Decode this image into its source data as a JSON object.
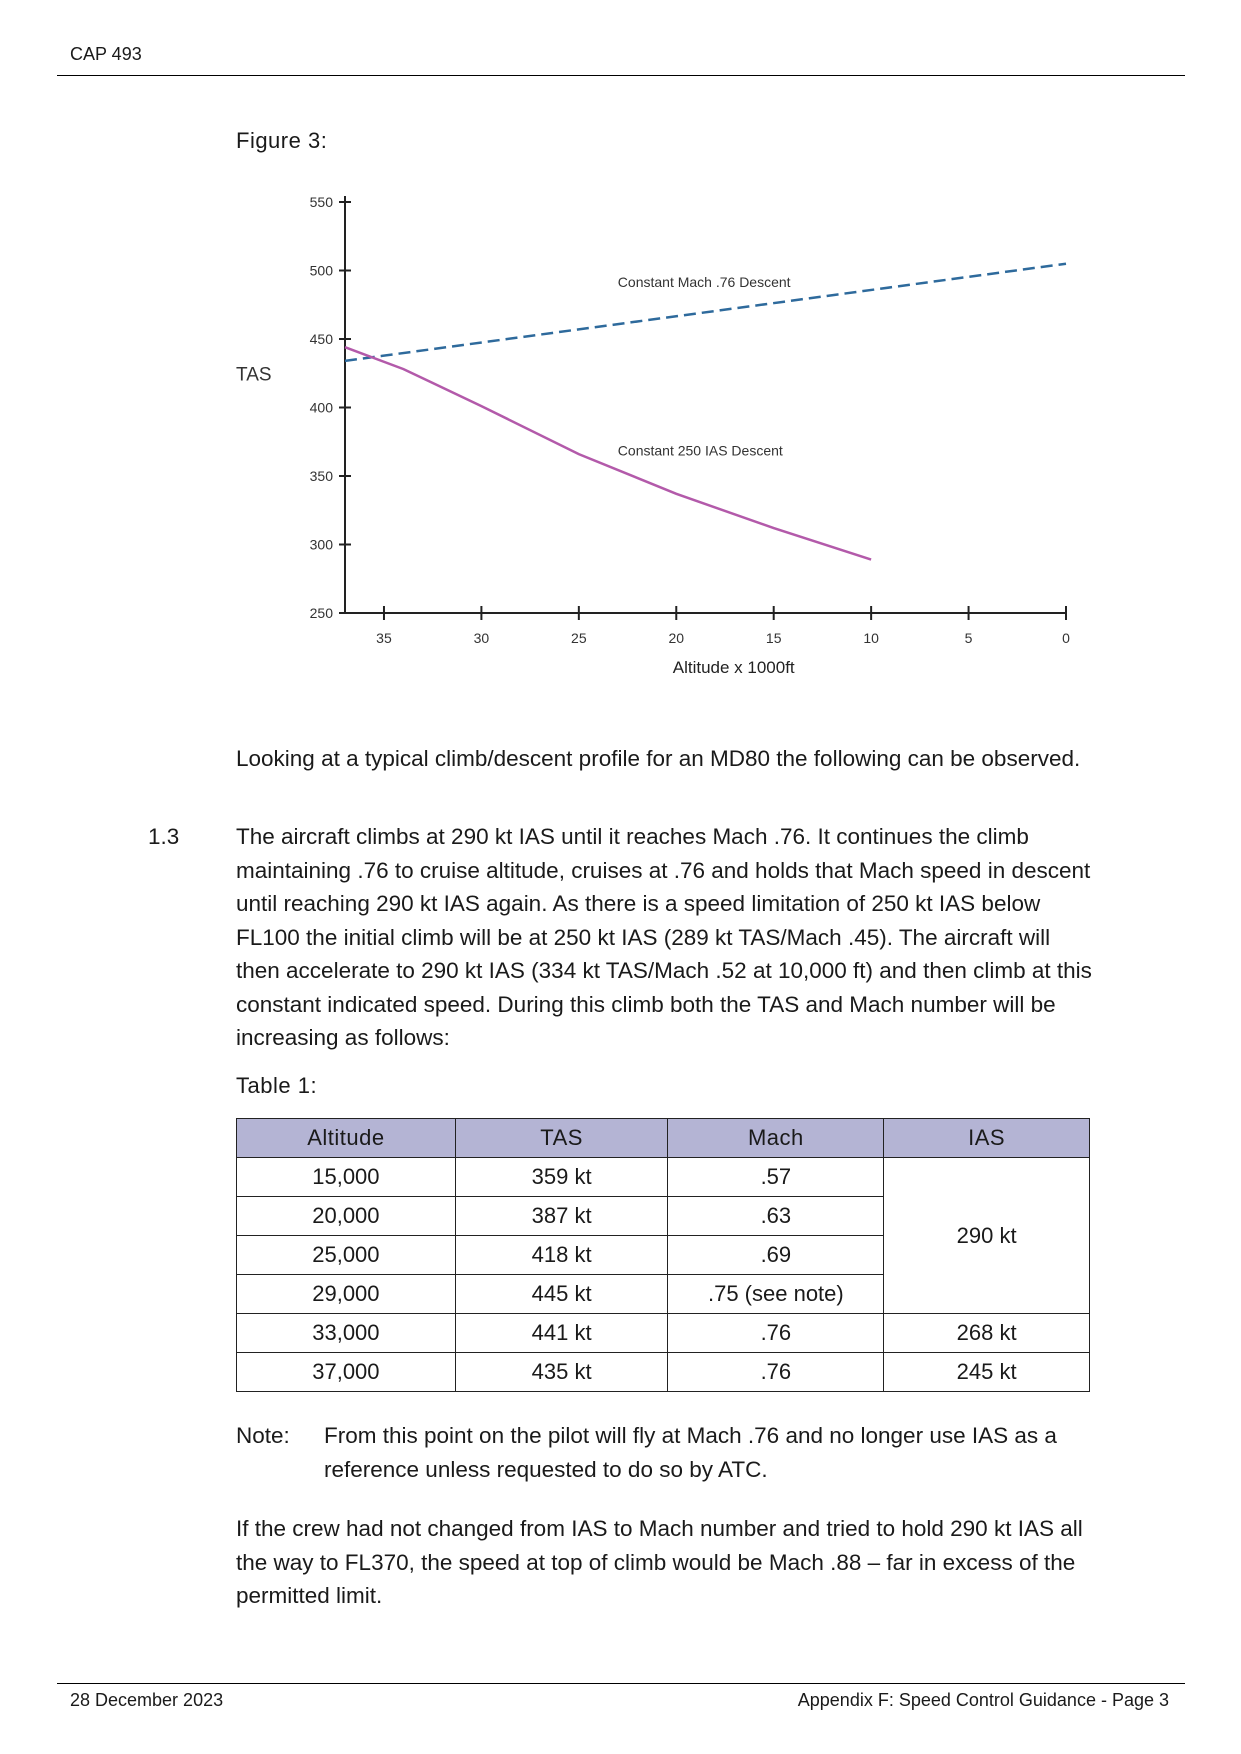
{
  "header": {
    "doc_id": "CAP 493"
  },
  "figure": {
    "label": "Figure 3:"
  },
  "chart_data": {
    "type": "line",
    "xlabel": "Altitude x 1000ft",
    "ylabel": "TAS",
    "x_ticks": [
      35,
      30,
      25,
      20,
      15,
      10,
      5,
      0
    ],
    "y_ticks": [
      250,
      300,
      350,
      400,
      450,
      500,
      550
    ],
    "xlim": [
      37,
      0
    ],
    "ylim": [
      250,
      550
    ],
    "series": [
      {
        "name": "Constant Mach .76 Descent",
        "style": "dashed",
        "color": "#2e6a9c",
        "x": [
          37,
          0
        ],
        "y": [
          434,
          505
        ],
        "label_at": [
          23,
          488
        ]
      },
      {
        "name": "Constant 250 IAS Descent",
        "style": "solid",
        "color": "#b35aaa",
        "x": [
          37,
          34,
          30,
          25,
          20,
          15,
          10
        ],
        "y": [
          444,
          428,
          401,
          366,
          337,
          312,
          289
        ],
        "label_at": [
          23,
          365
        ]
      }
    ]
  },
  "intro_text": "Looking at a typical climb/descent profile for an MD80 the following can be observed.",
  "section": {
    "number": "1.3",
    "text": "The aircraft climbs at 290 kt IAS until it reaches Mach .76. It continues the climb maintaining .76 to cruise altitude, cruises at .76 and holds that Mach speed in descent until reaching 290 kt IAS again. As there is a speed limitation of 250 kt IAS below FL100 the initial climb will be at 250 kt IAS (289 kt TAS/Mach .45). The aircraft will then accelerate to 290 kt IAS (334 kt TAS/Mach .52 at 10,000 ft) and then climb at this constant indicated speed. During this climb both the TAS and Mach number will be increasing as follows:"
  },
  "table": {
    "label": "Table 1:",
    "headers": [
      "Altitude",
      "TAS",
      "Mach",
      "IAS"
    ],
    "rows": [
      [
        "15,000",
        "359 kt",
        ".57"
      ],
      [
        "20,000",
        "387 kt",
        ".63"
      ],
      [
        "25,000",
        "418 kt",
        ".69"
      ],
      [
        "29,000",
        "445 kt",
        ".75 (see note)"
      ],
      [
        "33,000",
        "441 kt",
        ".76",
        "268 kt"
      ],
      [
        "37,000",
        "435 kt",
        ".76",
        "245 kt"
      ]
    ],
    "merged_ias": "290 kt"
  },
  "note": {
    "label": "Note:",
    "text": "From this point on the pilot will fly at Mach .76 and no longer use IAS as a reference unless requested to do so by ATC."
  },
  "closing_text": "If the crew had not changed from IAS to Mach number and tried to hold 290 kt IAS all the way to FL370, the speed at top of climb would be Mach .88 – far in excess of the permitted limit.",
  "footer": {
    "date": "28 December 2023",
    "page": "Appendix F: Speed Control Guidance - Page 3"
  }
}
